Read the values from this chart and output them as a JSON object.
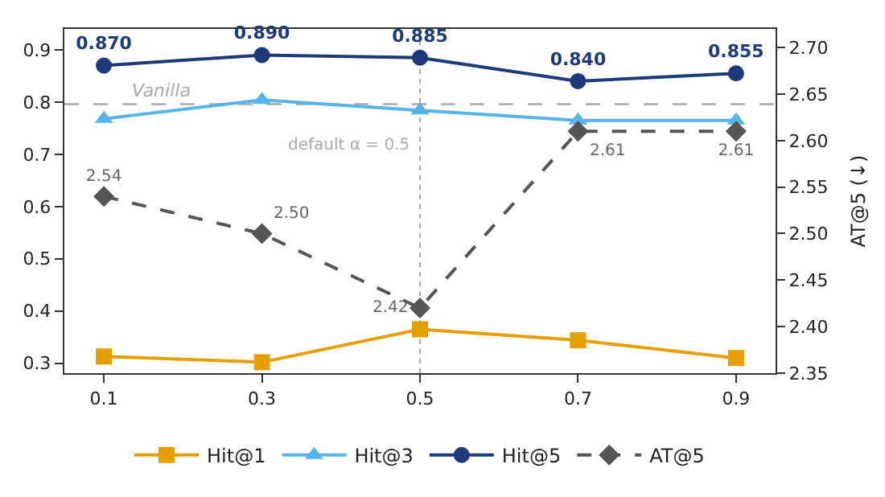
{
  "chart_data": {
    "type": "line",
    "y2label": "AT@5 (↓)",
    "x": [
      0.1,
      0.3,
      0.5,
      0.7,
      0.9
    ],
    "series": [
      {
        "name": "Hit@1",
        "color": "#e69f00",
        "marker": "square",
        "line_style": "solid",
        "values": [
          0.313,
          0.302,
          0.365,
          0.344,
          0.31
        ]
      },
      {
        "name": "Hit@3",
        "color": "#56b4e9",
        "marker": "triangle",
        "line_style": "solid",
        "values": [
          0.768,
          0.804,
          0.784,
          0.765,
          0.765
        ]
      },
      {
        "name": "Hit@5",
        "color": "#1f3a7a",
        "marker": "circle",
        "line_style": "solid",
        "values": [
          0.87,
          0.89,
          0.885,
          0.84,
          0.855
        ],
        "value_labels": [
          "0.870",
          "0.890",
          "0.885",
          "0.840",
          "0.855"
        ]
      },
      {
        "name": "AT@5",
        "color": "#555555",
        "marker": "diamond",
        "line_style": "dashed",
        "axis": "y2",
        "values": [
          2.54,
          2.5,
          2.42,
          2.61,
          2.61
        ],
        "value_labels": [
          "2.54",
          "2.50",
          "2.42",
          "2.61",
          "2.61"
        ]
      }
    ],
    "xlim": [
      0.05,
      0.95
    ],
    "xticks": [
      0.1,
      0.3,
      0.5,
      0.7,
      0.9
    ],
    "ylim": [
      0.281,
      0.94
    ],
    "yticks": [
      0.3,
      0.4,
      0.5,
      0.6,
      0.7,
      0.8,
      0.9
    ],
    "y2lim": [
      2.35,
      2.72
    ],
    "y2ticks": [
      {
        "value": 2.35,
        "label": "2.35"
      },
      {
        "value": 2.4,
        "label": "2.40"
      },
      {
        "value": 2.45,
        "label": "2.45"
      },
      {
        "value": 2.5,
        "label": "2.50"
      },
      {
        "value": 2.55,
        "label": "2.55"
      },
      {
        "value": 2.6,
        "label": "2.60"
      },
      {
        "value": 2.65,
        "label": "2.65"
      },
      {
        "value": 2.7,
        "label": "2.70"
      }
    ],
    "ref_lines": [
      {
        "axis": "y",
        "value": 0.796,
        "label": "Vanilla",
        "color": "#aaaaaa",
        "line_style": "dashed"
      },
      {
        "axis": "x",
        "value": 0.5,
        "label": "default α = 0.5",
        "color": "#aaaaaa",
        "line_style": "dotted"
      }
    ],
    "grid": false,
    "legend": "bottom"
  }
}
